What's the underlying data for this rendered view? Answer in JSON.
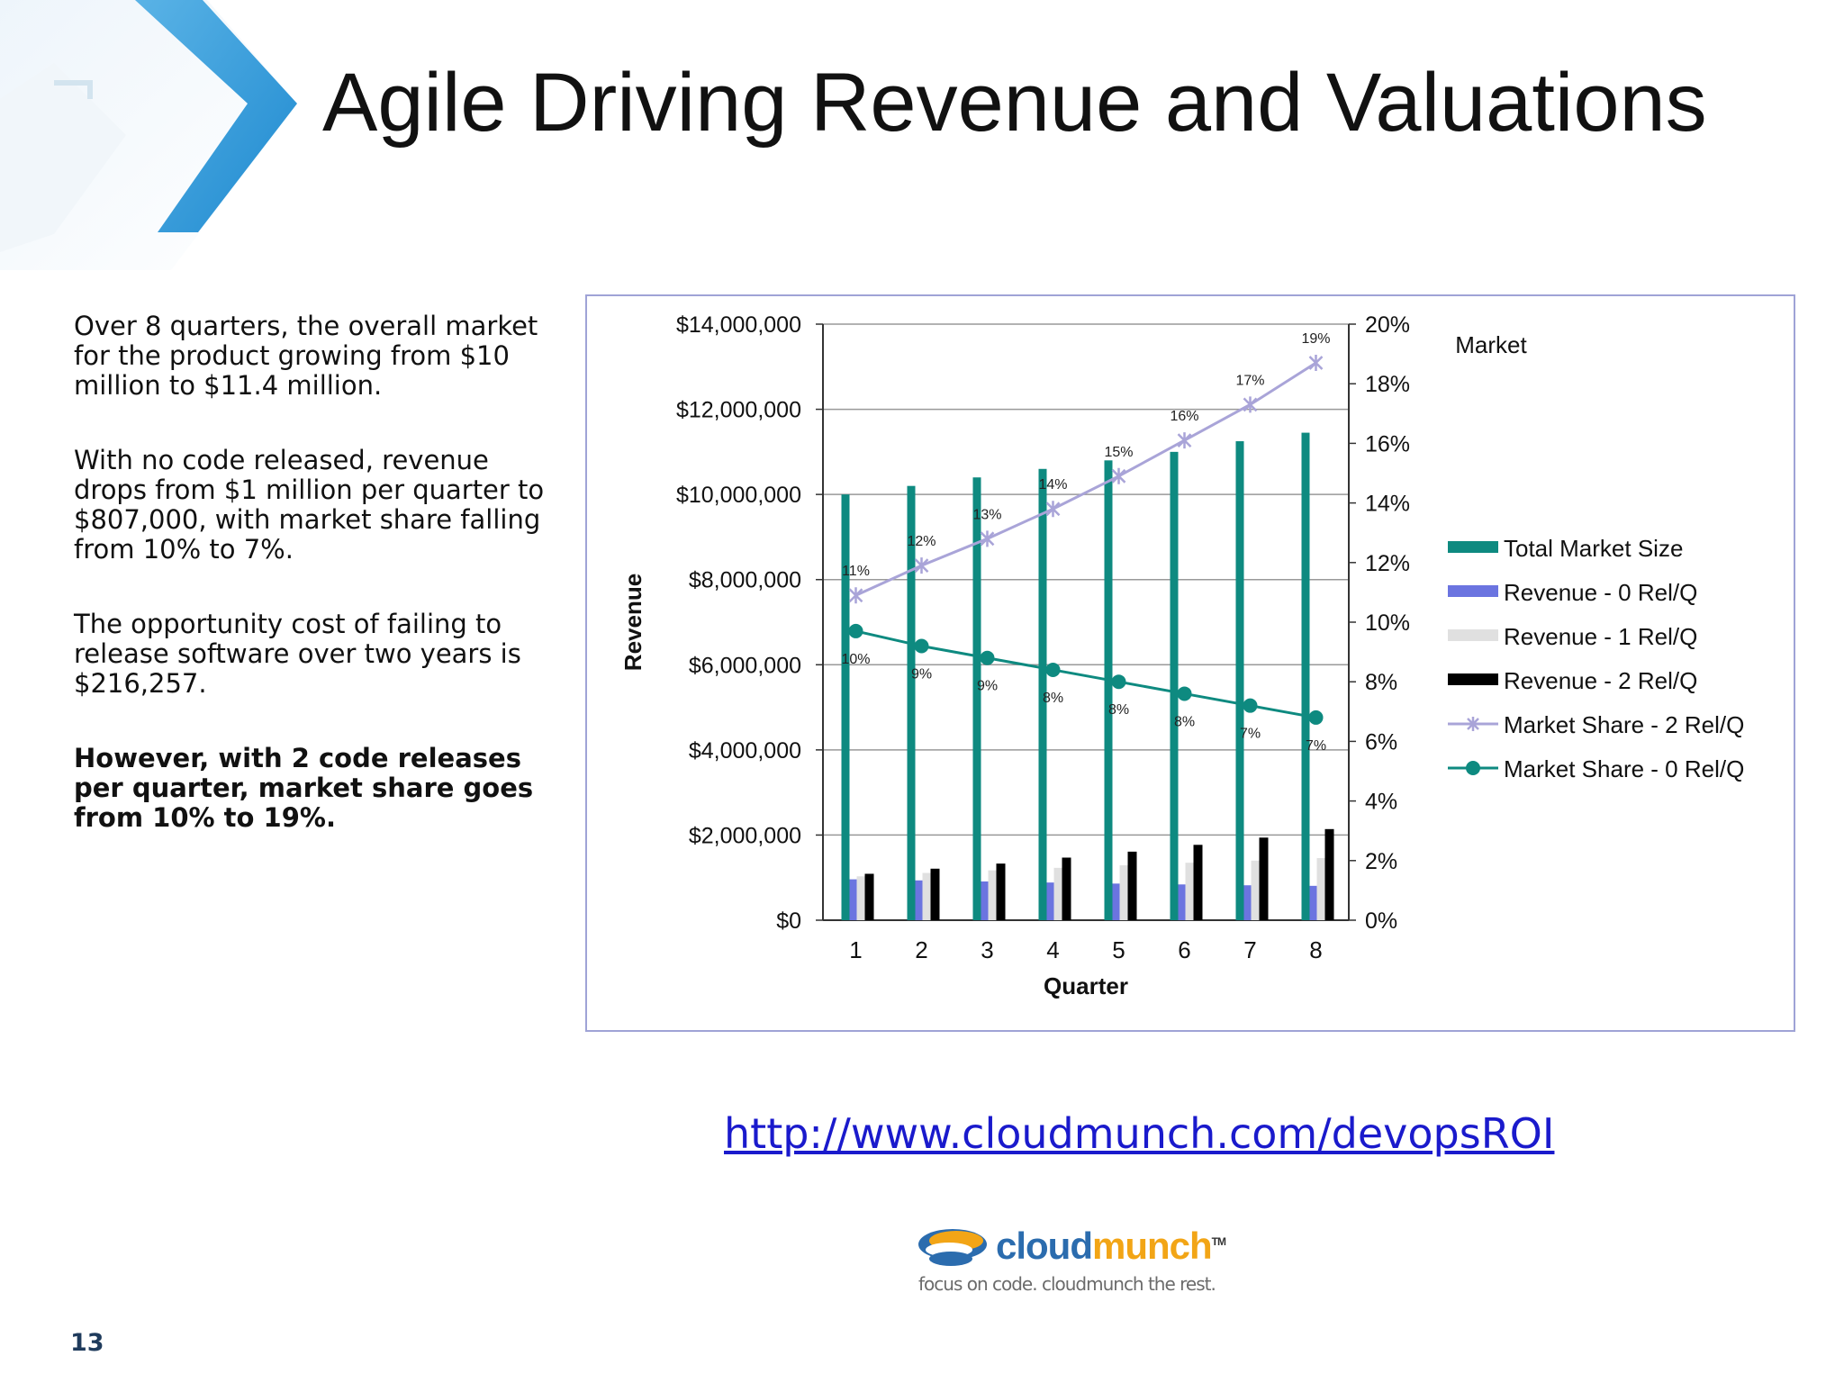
{
  "slide": {
    "title": "Agile Driving Revenue and Valuations",
    "page_number": "13",
    "paragraphs": [
      "Over 8 quarters, the overall market for the product growing from $10 million to $11.4 million.",
      "With no code released, revenue drops from $1 million per quarter to $807,000, with market share falling from 10% to 7%.",
      "The opportunity cost of failing to release software over two years is $216,257."
    ],
    "bold_paragraph": "However, with 2 code releases per quarter, market share goes from 10% to 19%.",
    "link": "http://www.cloudmunch.com/devopsROI",
    "logo": {
      "word_a": "cloud",
      "word_b": "munch",
      "tm": "TM",
      "tagline": "focus on code. cloudmunch the rest.",
      "colors": {
        "blue": "#2b6cae",
        "orange": "#f2a516"
      }
    }
  },
  "chart_data": {
    "type": "bar",
    "title": "",
    "legend_title": "Market",
    "xlabel": "Quarter",
    "ylabel": "Revenue",
    "x": [
      "1",
      "2",
      "3",
      "4",
      "5",
      "6",
      "7",
      "8"
    ],
    "ylim": [
      0,
      14000000
    ],
    "y_ticks": [
      "$0",
      "$2,000,000",
      "$4,000,000",
      "$6,000,000",
      "$8,000,000",
      "$10,000,000",
      "$12,000,000",
      "$14,000,000"
    ],
    "y2lim": [
      0,
      20
    ],
    "y2_ticks": [
      "0%",
      "2%",
      "4%",
      "6%",
      "8%",
      "10%",
      "12%",
      "14%",
      "16%",
      "18%",
      "20%"
    ],
    "grid": true,
    "legend_position": "right",
    "bar_series": [
      {
        "name": "Total Market Size",
        "color": "#0e8a80",
        "values": [
          10000000,
          10200000,
          10400000,
          10600000,
          10800000,
          11000000,
          11250000,
          11450000
        ]
      },
      {
        "name": "Revenue - 0 Rel/Q",
        "color": "#6b74e0",
        "values": [
          960000,
          935000,
          910000,
          885000,
          860000,
          840000,
          820000,
          807000
        ]
      },
      {
        "name": "Revenue - 1 Rel/Q",
        "color": "#e0e0e0",
        "values": [
          1030000,
          1110000,
          1170000,
          1230000,
          1290000,
          1350000,
          1400000,
          1460000
        ]
      },
      {
        "name": "Revenue  - 2 Rel/Q",
        "color": "#000000",
        "values": [
          1090000,
          1210000,
          1330000,
          1470000,
          1610000,
          1770000,
          1940000,
          2140000
        ]
      }
    ],
    "line_series": [
      {
        "name": "Market Share - 2 Rel/Q",
        "color": "#a9a4d8",
        "marker": "star",
        "values": [
          10.9,
          11.9,
          12.8,
          13.8,
          14.9,
          16.1,
          17.3,
          18.7
        ],
        "labels": [
          "11%",
          "12%",
          "13%",
          "14%",
          "15%",
          "16%",
          "17%",
          "19%"
        ]
      },
      {
        "name": "Market Share - 0 Rel/Q",
        "color": "#0e8a80",
        "marker": "circle",
        "values": [
          9.7,
          9.2,
          8.8,
          8.4,
          8.0,
          7.6,
          7.2,
          6.8
        ],
        "labels": [
          "10%",
          "9%",
          "9%",
          "8%",
          "8%",
          "8%",
          "7%",
          "7%"
        ]
      }
    ]
  }
}
